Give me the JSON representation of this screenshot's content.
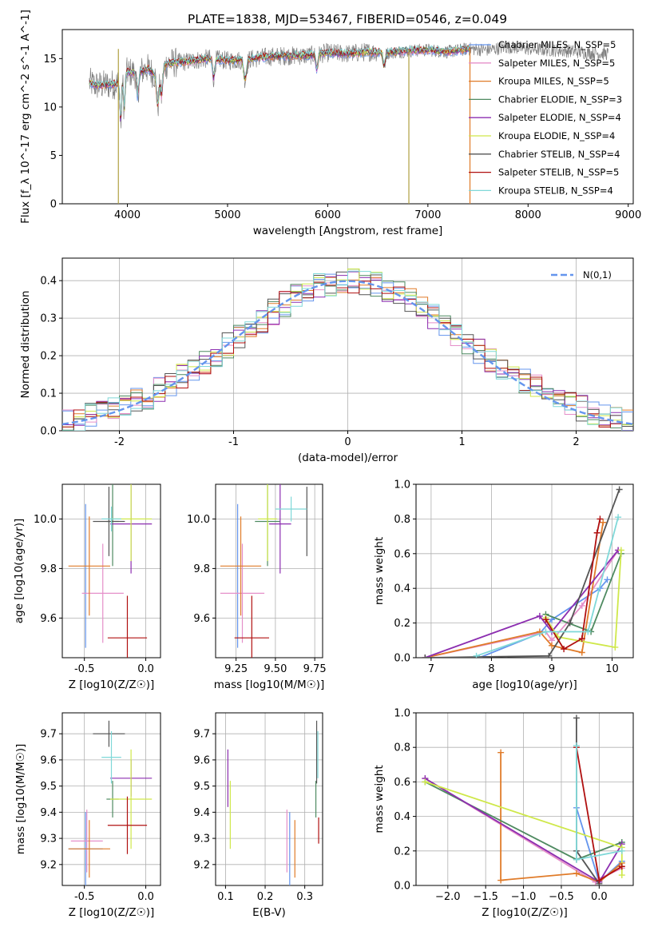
{
  "figure_title": "PLATE=1838, MJD=53467, FIBERID=0546, z=0.049",
  "legend": [
    {
      "name": "Chabrier MILES, N_SSP=5",
      "color": "#6495ed"
    },
    {
      "name": "Salpeter MILES, N_SSP=5",
      "color": "#e58fc9"
    },
    {
      "name": "Kroupa MILES, N_SSP=5",
      "color": "#e07b29"
    },
    {
      "name": "Chabrier ELODIE, N_SSP=3",
      "color": "#4e8a60"
    },
    {
      "name": "Salpeter ELODIE, N_SSP=4",
      "color": "#8c2eb0"
    },
    {
      "name": "Kroupa ELODIE, N_SSP=4",
      "color": "#cfe84a"
    },
    {
      "name": "Chabrier STELIB, N_SSP=4",
      "color": "#555555"
    },
    {
      "name": "Salpeter STELIB, N_SSP=5",
      "color": "#b01010"
    },
    {
      "name": "Kroupa STELIB, N_SSP=4",
      "color": "#7fd8d8"
    }
  ],
  "chart_data": [
    {
      "id": "spectrum",
      "type": "line",
      "xlabel": "wavelength [Angstrom, rest frame]",
      "ylabel": "Flux [f_λ 10^-17 erg cm^-2 s^-1 A^-1]",
      "xlim": [
        3350,
        9050
      ],
      "ylim": [
        0,
        18
      ],
      "xticks": [
        4000,
        5000,
        6000,
        7000,
        8000,
        9000
      ],
      "yticks": [
        0,
        5,
        10,
        15
      ],
      "grid": false,
      "legend": "right",
      "x": [
        3620,
        3700,
        3800,
        3900,
        4000,
        4100,
        4200,
        4300,
        4400,
        4500,
        4600,
        4800,
        5000,
        5200,
        5400,
        5600,
        5800,
        6000,
        6200,
        6400,
        6600,
        6800,
        7000,
        7200,
        7400,
        7600,
        7800,
        8000,
        8200,
        8400,
        8600,
        8800
      ],
      "y": [
        12.5,
        12.2,
        12.3,
        12.4,
        13.6,
        13.5,
        14.0,
        13.1,
        14.5,
        14.6,
        14.7,
        15.0,
        14.8,
        14.9,
        15.2,
        15.3,
        15.3,
        15.6,
        15.5,
        15.7,
        15.6,
        15.8,
        15.9,
        15.7,
        16.0,
        15.9,
        16.2,
        16.0,
        15.9,
        15.8,
        15.6,
        15.5
      ],
      "notes_vertical_lines": [
        3910,
        6810,
        7420
      ]
    },
    {
      "id": "residual_hist",
      "type": "bar",
      "xlabel": "(data-model)/error",
      "ylabel": "Normed distribution",
      "xlim": [
        -2.5,
        2.5
      ],
      "ylim": [
        0,
        0.46
      ],
      "xticks": [
        -2,
        -1,
        0,
        1,
        2
      ],
      "yticks": [
        0.0,
        0.1,
        0.2,
        0.3,
        0.4
      ],
      "grid": true,
      "legend": "top-right",
      "reference_label": "N(0,1)",
      "reference_color": "#6495ed",
      "bin_width": 0.1,
      "base_values": [
        0.023,
        0.03,
        0.038,
        0.046,
        0.055,
        0.066,
        0.078,
        0.092,
        0.107,
        0.124,
        0.142,
        0.162,
        0.183,
        0.205,
        0.227,
        0.25,
        0.273,
        0.295,
        0.317,
        0.337,
        0.355,
        0.371,
        0.384,
        0.393,
        0.399,
        0.4,
        0.397,
        0.39,
        0.379,
        0.364,
        0.346,
        0.326,
        0.304,
        0.282,
        0.259,
        0.236,
        0.213,
        0.191,
        0.17,
        0.15,
        0.132,
        0.115,
        0.099,
        0.085,
        0.072,
        0.06,
        0.05,
        0.042,
        0.034,
        0.028
      ]
    },
    {
      "id": "age_vs_Z",
      "type": "scatter",
      "xlabel": "Z [log10(Z/Z☉)]",
      "ylabel": "age  [log10(age/yr)]",
      "xlim": [
        -0.68,
        0.12
      ],
      "ylim": [
        9.44,
        10.14
      ],
      "xticks": [
        -0.5,
        0.0
      ],
      "yticks": [
        9.6,
        9.8,
        10.0
      ],
      "grid": true,
      "points": [
        {
          "x": -0.49,
          "y": 9.77,
          "xerr": 0.0,
          "yerr": 0.29
        },
        {
          "x": -0.35,
          "y": 9.7,
          "xerr": 0.17,
          "yerr": 0.2
        },
        {
          "x": -0.46,
          "y": 9.81,
          "xerr": 0.17,
          "yerr": 0.2
        },
        {
          "x": -0.27,
          "y": 9.99,
          "xerr": 0.05,
          "yerr": 0.18
        },
        {
          "x": -0.12,
          "y": 9.98,
          "xerr": 0.17,
          "yerr": 0.2
        },
        {
          "x": -0.12,
          "y": 10.0,
          "xerr": 0.17,
          "yerr": 0.17
        },
        {
          "x": -0.3,
          "y": 9.99,
          "xerr": 0.13,
          "yerr": 0.14
        },
        {
          "x": -0.15,
          "y": 9.52,
          "xerr": 0.16,
          "yerr": 0.17
        },
        {
          "x": -0.28,
          "y": 10.0,
          "xerr": 0.08,
          "yerr": 0.05
        }
      ]
    },
    {
      "id": "age_vs_mass",
      "type": "scatter",
      "xlabel": "mass [log10(M/M☉)]",
      "ylabel": "",
      "xlim": [
        9.12,
        9.8
      ],
      "ylim": [
        9.44,
        10.14
      ],
      "xticks": [
        9.25,
        9.5,
        9.75
      ],
      "yticks": [
        9.6,
        9.8,
        10.0
      ],
      "grid": true,
      "points": [
        {
          "x": 9.26,
          "y": 9.77,
          "xerr": 0.0,
          "yerr": 0.29
        },
        {
          "x": 9.29,
          "y": 9.7,
          "xerr": 0.14,
          "yerr": 0.2
        },
        {
          "x": 9.28,
          "y": 9.81,
          "xerr": 0.13,
          "yerr": 0.2
        },
        {
          "x": 9.45,
          "y": 9.99,
          "xerr": 0.08,
          "yerr": 0.18
        },
        {
          "x": 9.53,
          "y": 9.98,
          "xerr": 0.07,
          "yerr": 0.2
        },
        {
          "x": 9.45,
          "y": 10.0,
          "xerr": 0.06,
          "yerr": 0.17
        },
        {
          "x": 9.7,
          "y": 9.99,
          "xerr": 0.0,
          "yerr": 0.14
        },
        {
          "x": 9.35,
          "y": 9.52,
          "xerr": 0.11,
          "yerr": 0.17
        },
        {
          "x": 9.6,
          "y": 10.04,
          "xerr": 0.1,
          "yerr": 0.05
        }
      ]
    },
    {
      "id": "weight_vs_age",
      "type": "line",
      "xlabel": "age  [log10(age/yr)]",
      "ylabel": "mass weight",
      "xlim": [
        6.75,
        10.35
      ],
      "ylim": [
        0,
        1
      ],
      "xticks": [
        7,
        8,
        9,
        10
      ],
      "yticks": [
        0.0,
        0.2,
        0.4,
        0.6,
        0.8,
        1.0
      ],
      "grid": true,
      "series": [
        {
          "x": [
            7.8,
            8.8,
            9.0,
            9.8,
            9.92
          ],
          "y": [
            0.0,
            0.14,
            0.22,
            0.4,
            0.45
          ]
        },
        {
          "x": [
            6.9,
            8.9,
            9.0,
            9.5,
            10.1
          ],
          "y": [
            0.0,
            0.15,
            0.1,
            0.3,
            0.62
          ]
        },
        {
          "x": [
            6.9,
            8.8,
            9.0,
            9.5,
            9.85
          ],
          "y": [
            0.0,
            0.15,
            0.07,
            0.03,
            0.78
          ]
        },
        {
          "x": [
            8.9,
            9.65,
            10.15
          ],
          "y": [
            0.25,
            0.15,
            0.6
          ]
        },
        {
          "x": [
            6.9,
            8.8,
            9.0,
            10.1
          ],
          "y": [
            0.0,
            0.24,
            0.15,
            0.62
          ]
        },
        {
          "x": [
            8.9,
            9.1,
            10.05,
            10.15
          ],
          "y": [
            0.23,
            0.12,
            0.06,
            0.62
          ]
        },
        {
          "x": [
            6.9,
            8.95,
            9.3,
            10.12
          ],
          "y": [
            0.0,
            0.01,
            0.2,
            0.97
          ]
        },
        {
          "x": [
            8.9,
            9.2,
            9.5,
            9.75,
            9.8
          ],
          "y": [
            0.22,
            0.05,
            0.11,
            0.72,
            0.8
          ]
        },
        {
          "x": [
            7.75,
            8.9,
            9.6,
            10.1
          ],
          "y": [
            0.01,
            0.15,
            0.15,
            0.81
          ]
        }
      ]
    },
    {
      "id": "mass_vs_Z",
      "type": "scatter",
      "xlabel": "Z [log10(Z/Z☉)]",
      "ylabel": "mass [log10(M/M☉)]",
      "xlim": [
        -0.68,
        0.12
      ],
      "ylim": [
        9.12,
        9.78
      ],
      "xticks": [
        -0.5,
        0.0
      ],
      "yticks": [
        9.2,
        9.3,
        9.4,
        9.5,
        9.6,
        9.7
      ],
      "grid": true,
      "points": [
        {
          "x": -0.49,
          "y": 9.26,
          "xerr": 0.14,
          "yerr": 0.14
        },
        {
          "x": -0.48,
          "y": 9.29,
          "xerr": 0.13,
          "yerr": 0.12
        },
        {
          "x": -0.46,
          "y": 9.26,
          "xerr": 0.17,
          "yerr": 0.11
        },
        {
          "x": -0.27,
          "y": 9.45,
          "xerr": 0.05,
          "yerr": 0.07
        },
        {
          "x": -0.12,
          "y": 9.53,
          "xerr": 0.17,
          "yerr": 0.07
        },
        {
          "x": -0.12,
          "y": 9.45,
          "xerr": 0.17,
          "yerr": 0.19
        },
        {
          "x": -0.3,
          "y": 9.7,
          "xerr": 0.13,
          "yerr": 0.05
        },
        {
          "x": -0.15,
          "y": 9.35,
          "xerr": 0.16,
          "yerr": 0.11
        },
        {
          "x": -0.28,
          "y": 9.61,
          "xerr": 0.08,
          "yerr": 0.1
        }
      ]
    },
    {
      "id": "mass_vs_ebv",
      "type": "scatter",
      "xlabel": "E(B-V)",
      "ylabel": "",
      "xlim": [
        0.075,
        0.345
      ],
      "ylim": [
        9.12,
        9.78
      ],
      "xticks": [
        0.1,
        0.2,
        0.3
      ],
      "yticks": [
        9.2,
        9.3,
        9.4,
        9.5,
        9.6,
        9.7
      ],
      "grid": true,
      "points": [
        {
          "x": 0.262,
          "y": 9.26,
          "xerr": 0,
          "yerr": 0.14
        },
        {
          "x": 0.255,
          "y": 9.29,
          "xerr": 0,
          "yerr": 0.12
        },
        {
          "x": 0.275,
          "y": 9.26,
          "xerr": 0,
          "yerr": 0.11
        },
        {
          "x": 0.328,
          "y": 9.45,
          "xerr": 0,
          "yerr": 0.07
        },
        {
          "x": 0.106,
          "y": 9.53,
          "xerr": 0,
          "yerr": 0.11
        },
        {
          "x": 0.112,
          "y": 9.39,
          "xerr": 0,
          "yerr": 0.13
        },
        {
          "x": 0.33,
          "y": 9.63,
          "xerr": 0,
          "yerr": 0.12
        },
        {
          "x": 0.335,
          "y": 9.33,
          "xerr": 0,
          "yerr": 0.05
        },
        {
          "x": 0.333,
          "y": 9.62,
          "xerr": 0,
          "yerr": 0.09
        }
      ]
    },
    {
      "id": "weight_vs_Z",
      "type": "line",
      "xlabel": "Z [log10(Z/Z☉)]",
      "ylabel": "mass weight",
      "xlim": [
        -2.42,
        0.45
      ],
      "ylim": [
        0,
        1
      ],
      "xticks": [
        -2.0,
        -1.5,
        -1.0,
        -0.5,
        0.0
      ],
      "yticks": [
        0.0,
        0.2,
        0.4,
        0.6,
        0.8,
        1.0
      ],
      "grid": true,
      "series": [
        {
          "x": [
            -0.3,
            0.0,
            0.3
          ],
          "y": [
            0.45,
            0.02,
            0.14
          ]
        },
        {
          "x": [
            -2.3,
            -0.05,
            0.0,
            0.3
          ],
          "y": [
            0.62,
            0.02,
            0.04,
            0.1
          ]
        },
        {
          "x": [
            -1.3,
            -1.3,
            -0.3,
            0.0,
            0.3
          ],
          "y": [
            0.77,
            0.03,
            0.07,
            0.02,
            0.13
          ]
        },
        {
          "x": [
            -2.3,
            -0.3,
            0.3
          ],
          "y": [
            0.6,
            0.15,
            0.25
          ]
        },
        {
          "x": [
            -2.3,
            0.0,
            0.3
          ],
          "y": [
            0.62,
            0.02,
            0.24
          ]
        },
        {
          "x": [
            -2.3,
            0.3,
            0.3
          ],
          "y": [
            0.6,
            0.22,
            0.06
          ]
        },
        {
          "x": [
            -0.3,
            -0.3,
            0.0
          ],
          "y": [
            0.97,
            0.2,
            0.01
          ]
        },
        {
          "x": [
            -0.3,
            0.0,
            0.3
          ],
          "y": [
            0.8,
            0.03,
            0.11
          ]
        },
        {
          "x": [
            -0.3,
            -0.3,
            0.3
          ],
          "y": [
            0.81,
            0.15,
            0.2
          ]
        }
      ]
    }
  ]
}
